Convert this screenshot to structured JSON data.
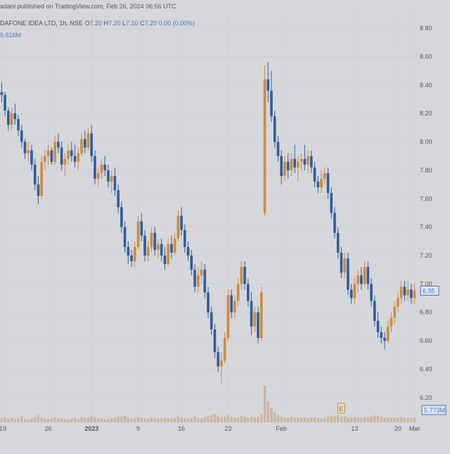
{
  "header": {
    "publisher": "adani published on TradingView.com, Feb 26, 2024 06:56 UTC",
    "symbol": "DAFONE IDEA LTD, 1h, NSE",
    "ohlc": {
      "o_label": "O",
      "o": "7.20",
      "h_label": "H",
      "h": "7.20",
      "l_label": "L",
      "l": "7.10",
      "c_label": "C",
      "c": "7.20",
      "change": "0.00 (0.00%)"
    },
    "volume": "9.616M"
  },
  "colors": {
    "background": "#d6d7db",
    "up": "#d08a3a",
    "down": "#2f5d9c",
    "volume": "#c7a98a",
    "grid": "#cfd0d5",
    "axis_text": "#55575e",
    "price_box": "#4a76b8"
  },
  "chart_data": {
    "type": "candlestick",
    "interval": "1h",
    "ylim": [
      6.1,
      8.85
    ],
    "y_ticks": [
      "8.80",
      "8.60",
      "8.40",
      "8.20",
      "8.00",
      "7.80",
      "7.60",
      "7.40",
      "7.20",
      "7.00",
      "6.80",
      "6.60",
      "6.40",
      "6.20"
    ],
    "x_ticks": [
      "19",
      "26",
      "2023",
      "9",
      "16",
      "23",
      "Feb",
      "13",
      "20",
      "Mar"
    ],
    "last_price_label": "6.95",
    "volume_label": "5.773M",
    "event_marker": "E",
    "grid": true,
    "series": [
      {
        "values": [
          [
            8.35,
            8.42,
            8.28,
            8.33
          ],
          [
            8.33,
            8.35,
            8.18,
            8.22
          ],
          [
            8.22,
            8.24,
            8.08,
            8.12
          ],
          [
            8.12,
            8.24,
            8.08,
            8.2
          ],
          [
            8.2,
            8.27,
            8.12,
            8.16
          ],
          [
            8.16,
            8.19,
            8.04,
            8.08
          ],
          [
            8.08,
            8.12,
            7.96,
            8.0
          ],
          [
            8.0,
            8.02,
            7.88,
            7.92
          ],
          [
            7.92,
            8.0,
            7.86,
            7.94
          ],
          [
            7.94,
            7.98,
            7.8,
            7.84
          ],
          [
            7.84,
            7.88,
            7.66,
            7.7
          ],
          [
            7.7,
            7.76,
            7.56,
            7.62
          ],
          [
            7.62,
            7.9,
            7.6,
            7.86
          ],
          [
            7.86,
            7.94,
            7.8,
            7.9
          ],
          [
            7.9,
            7.98,
            7.84,
            7.94
          ],
          [
            7.94,
            7.96,
            7.84,
            7.86
          ],
          [
            7.86,
            8.04,
            7.84,
            8.0
          ],
          [
            8.0,
            8.06,
            7.92,
            7.96
          ],
          [
            7.96,
            8.0,
            7.8,
            7.84
          ],
          [
            7.84,
            7.92,
            7.76,
            7.88
          ],
          [
            7.88,
            7.98,
            7.84,
            7.94
          ],
          [
            7.94,
            8.0,
            7.86,
            7.9
          ],
          [
            7.9,
            7.98,
            7.82,
            7.86
          ],
          [
            7.86,
            7.96,
            7.8,
            7.92
          ],
          [
            7.92,
            8.06,
            7.9,
            8.02
          ],
          [
            8.02,
            8.08,
            7.92,
            7.96
          ],
          [
            7.96,
            8.1,
            7.94,
            8.06
          ],
          [
            8.06,
            8.12,
            7.86,
            7.9
          ],
          [
            7.9,
            7.94,
            7.7,
            7.74
          ],
          [
            7.74,
            7.82,
            7.68,
            7.78
          ],
          [
            7.78,
            7.88,
            7.74,
            7.84
          ],
          [
            7.84,
            7.9,
            7.76,
            7.8
          ],
          [
            7.8,
            7.84,
            7.68,
            7.72
          ],
          [
            7.72,
            7.8,
            7.64,
            7.76
          ],
          [
            7.76,
            7.82,
            7.62,
            7.66
          ],
          [
            7.66,
            7.7,
            7.5,
            7.54
          ],
          [
            7.54,
            7.58,
            7.36,
            7.4
          ],
          [
            7.4,
            7.44,
            7.22,
            7.26
          ],
          [
            7.26,
            7.3,
            7.14,
            7.2
          ],
          [
            7.2,
            7.24,
            7.12,
            7.16
          ],
          [
            7.16,
            7.3,
            7.12,
            7.26
          ],
          [
            7.26,
            7.48,
            7.24,
            7.44
          ],
          [
            7.44,
            7.5,
            7.3,
            7.34
          ],
          [
            7.34,
            7.38,
            7.16,
            7.2
          ],
          [
            7.2,
            7.3,
            7.16,
            7.26
          ],
          [
            7.26,
            7.4,
            7.22,
            7.36
          ],
          [
            7.36,
            7.4,
            7.2,
            7.24
          ],
          [
            7.24,
            7.32,
            7.18,
            7.28
          ],
          [
            7.28,
            7.32,
            7.16,
            7.2
          ],
          [
            7.2,
            7.26,
            7.1,
            7.14
          ],
          [
            7.14,
            7.32,
            7.12,
            7.28
          ],
          [
            7.28,
            7.34,
            7.18,
            7.22
          ],
          [
            7.22,
            7.36,
            7.2,
            7.32
          ],
          [
            7.32,
            7.52,
            7.3,
            7.48
          ],
          [
            7.48,
            7.54,
            7.34,
            7.38
          ],
          [
            7.38,
            7.42,
            7.22,
            7.26
          ],
          [
            7.26,
            7.3,
            7.16,
            7.2
          ],
          [
            7.2,
            7.24,
            7.06,
            7.1
          ],
          [
            7.1,
            7.14,
            6.94,
            6.98
          ],
          [
            6.98,
            7.12,
            6.94,
            7.06
          ],
          [
            7.06,
            7.16,
            7.0,
            7.1
          ],
          [
            7.1,
            7.14,
            6.9,
            6.94
          ],
          [
            6.94,
            6.98,
            6.76,
            6.8
          ],
          [
            6.8,
            6.84,
            6.64,
            6.68
          ],
          [
            6.68,
            6.72,
            6.48,
            6.52
          ],
          [
            6.52,
            6.56,
            6.38,
            6.42
          ],
          [
            6.42,
            6.52,
            6.3,
            6.46
          ],
          [
            6.46,
            6.66,
            6.44,
            6.62
          ],
          [
            6.62,
            6.96,
            6.6,
            6.92
          ],
          [
            6.92,
            6.96,
            6.76,
            6.8
          ],
          [
            6.8,
            6.92,
            6.76,
            6.88
          ],
          [
            6.88,
            7.04,
            6.84,
            7.0
          ],
          [
            7.0,
            7.16,
            6.96,
            7.12
          ],
          [
            7.12,
            7.16,
            6.96,
            7.0
          ],
          [
            7.0,
            7.04,
            6.84,
            6.88
          ],
          [
            6.88,
            6.94,
            6.64,
            6.7
          ],
          [
            6.7,
            6.84,
            6.66,
            6.8
          ],
          [
            6.8,
            6.84,
            6.58,
            6.62
          ],
          [
            6.62,
            6.98,
            6.6,
            6.94
          ],
          [
            7.5,
            8.54,
            7.48,
            8.44
          ],
          [
            8.44,
            8.56,
            8.28,
            8.36
          ],
          [
            8.36,
            8.5,
            8.14,
            8.18
          ],
          [
            8.18,
            8.22,
            7.96,
            8.0
          ],
          [
            8.0,
            8.04,
            7.86,
            7.9
          ],
          [
            7.9,
            7.94,
            7.7,
            7.76
          ],
          [
            7.76,
            7.9,
            7.72,
            7.86
          ],
          [
            7.86,
            7.92,
            7.74,
            7.8
          ],
          [
            7.8,
            7.92,
            7.76,
            7.88
          ],
          [
            7.88,
            7.98,
            7.78,
            7.82
          ],
          [
            7.82,
            7.9,
            7.72,
            7.86
          ],
          [
            7.86,
            7.92,
            7.8,
            7.88
          ],
          [
            7.88,
            7.98,
            7.8,
            7.84
          ],
          [
            7.84,
            7.94,
            7.78,
            7.9
          ],
          [
            7.9,
            7.94,
            7.78,
            7.82
          ],
          [
            7.82,
            7.86,
            7.68,
            7.72
          ],
          [
            7.72,
            7.76,
            7.64,
            7.68
          ],
          [
            7.68,
            7.8,
            7.64,
            7.74
          ],
          [
            7.74,
            7.82,
            7.7,
            7.78
          ],
          [
            7.78,
            7.82,
            7.6,
            7.64
          ],
          [
            7.64,
            7.68,
            7.46,
            7.5
          ],
          [
            7.5,
            7.54,
            7.32,
            7.36
          ],
          [
            7.36,
            7.4,
            7.18,
            7.22
          ],
          [
            7.22,
            7.26,
            7.04,
            7.08
          ],
          [
            7.08,
            7.22,
            7.04,
            7.18
          ],
          [
            7.18,
            7.22,
            6.92,
            6.96
          ],
          [
            6.96,
            7.0,
            6.86,
            6.9
          ],
          [
            6.9,
            7.04,
            6.86,
            7.0
          ],
          [
            7.0,
            7.1,
            6.94,
            7.06
          ],
          [
            7.06,
            7.12,
            6.96,
            7.0
          ],
          [
            7.0,
            7.16,
            6.98,
            7.12
          ],
          [
            7.12,
            7.16,
            6.96,
            7.0
          ],
          [
            7.0,
            7.04,
            6.84,
            6.88
          ],
          [
            6.88,
            6.92,
            6.7,
            6.74
          ],
          [
            6.74,
            6.8,
            6.62,
            6.66
          ],
          [
            6.66,
            6.7,
            6.58,
            6.62
          ],
          [
            6.62,
            6.66,
            6.54,
            6.6
          ],
          [
            6.6,
            6.74,
            6.58,
            6.7
          ],
          [
            6.7,
            6.8,
            6.66,
            6.76
          ],
          [
            6.76,
            6.88,
            6.72,
            6.84
          ],
          [
            6.84,
            6.94,
            6.8,
            6.9
          ],
          [
            6.9,
            7.02,
            6.86,
            6.98
          ],
          [
            6.98,
            7.02,
            6.88,
            6.92
          ],
          [
            6.92,
            7.02,
            6.88,
            6.96
          ],
          [
            6.96,
            7.0,
            6.86,
            6.9
          ],
          [
            6.9,
            7.0,
            6.86,
            6.95
          ]
        ]
      }
    ],
    "volumes": [
      0.9,
      1.1,
      0.8,
      1.0,
      0.7,
      0.9,
      1.3,
      0.8,
      0.6,
      0.9,
      1.2,
      1.6,
      1.0,
      0.8,
      0.7,
      0.9,
      1.1,
      0.8,
      0.9,
      0.7,
      0.6,
      0.8,
      1.0,
      0.7,
      1.2,
      0.9,
      1.0,
      1.4,
      1.1,
      0.8,
      0.9,
      0.7,
      0.8,
      0.9,
      1.0,
      1.3,
      1.2,
      1.5,
      1.1,
      0.8,
      0.9,
      1.2,
      1.0,
      0.9,
      0.8,
      1.1,
      0.9,
      0.8,
      0.9,
      1.0,
      0.9,
      0.8,
      1.0,
      1.3,
      1.0,
      0.9,
      0.8,
      1.0,
      1.3,
      0.9,
      0.8,
      1.1,
      1.4,
      1.6,
      1.8,
      1.5,
      1.2,
      1.3,
      1.6,
      1.2,
      1.0,
      1.1,
      1.4,
      1.2,
      1.0,
      1.3,
      1.1,
      1.2,
      1.8,
      8.0,
      4.6,
      3.2,
      2.2,
      1.6,
      1.3,
      1.1,
      1.0,
      1.2,
      1.0,
      0.9,
      1.0,
      1.1,
      0.9,
      1.0,
      1.1,
      0.9,
      0.8,
      1.0,
      1.3,
      1.4,
      1.5,
      1.6,
      1.2,
      1.4,
      1.1,
      1.0,
      1.2,
      1.1,
      1.0,
      1.2,
      1.1,
      1.3,
      1.5,
      1.4,
      1.2,
      1.0,
      1.1,
      1.0,
      0.9,
      1.0,
      1.1,
      0.9,
      1.0,
      0.9,
      1.0
    ]
  }
}
